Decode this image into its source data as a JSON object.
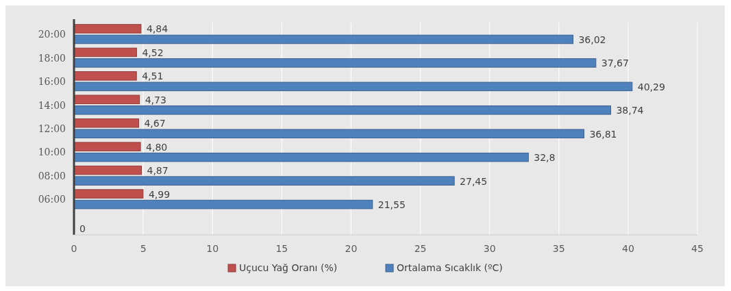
{
  "chart_data": {
    "type": "bar",
    "orientation": "horizontal",
    "categories": [
      "20:00",
      "18:00",
      "16:00",
      "14:00",
      "12:00",
      "10:00",
      "08:00",
      "06:00",
      null
    ],
    "series": [
      {
        "name": "Uçucu Yağ Oranı (%)",
        "color": "#c0504d",
        "values": [
          4.84,
          4.52,
          4.51,
          4.73,
          4.67,
          4.8,
          4.87,
          4.99,
          null
        ],
        "value_labels": [
          "4,84",
          "4,52",
          "4,51",
          "4,73",
          "4,67",
          "4,80",
          "4,87",
          "4,99",
          null
        ]
      },
      {
        "name": "Ortalama Sıcaklık (ºC)",
        "color": "#4f81bd",
        "values": [
          36.02,
          37.67,
          40.29,
          38.74,
          36.81,
          32.8,
          27.45,
          21.55,
          0
        ],
        "value_labels": [
          "36,02",
          "37,67",
          "40,29",
          "38,74",
          "36,81",
          "32,8",
          "27,45",
          "21,55",
          "0"
        ]
      }
    ],
    "xlim": [
      0,
      45
    ],
    "xticks": [
      0,
      5,
      10,
      15,
      20,
      25,
      30,
      35,
      40,
      45
    ],
    "grid": "x",
    "legend": "bottom"
  }
}
